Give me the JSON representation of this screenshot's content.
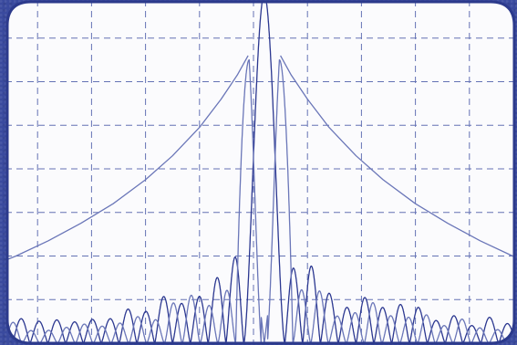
{
  "chart_data": {
    "type": "line",
    "title": "",
    "xlabel": "",
    "ylabel": "",
    "grid": true,
    "legend": "none",
    "grid_divisions": {
      "x": 10,
      "y": 8
    },
    "colors": {
      "background": "#fbfbfd",
      "grid": "#6472b4",
      "trace_dark": "#2b3790",
      "trace_light": "#6a76b8",
      "frame": "#2c3a8c"
    },
    "series": [
      {
        "name": "",
        "style": "sinc-sidelobes",
        "center_x": 5.2,
        "peak_y": 8.0,
        "mainlobe_halfwidth": 0.38,
        "sidelobe_period": 0.33,
        "sidelobe_envelope_exponent": 1.0,
        "floor_y": 0.0
      },
      {
        "name": "",
        "style": "split-peak",
        "center_x": 5.2,
        "peak_y": 6.5,
        "notch_y": 2.1,
        "lobe_offset": 0.28,
        "sidelobe_period": 0.33,
        "floor_y": 0.0
      },
      {
        "name": "",
        "style": "envelope",
        "side": "left",
        "x": [
          0.0,
          0.6,
          1.2,
          1.8,
          2.4,
          3.0,
          3.5,
          4.0,
          4.4,
          4.7,
          4.9
        ],
        "y": [
          1.7,
          2.0,
          2.35,
          2.75,
          3.2,
          3.75,
          4.3,
          4.95,
          5.6,
          6.15,
          6.6
        ]
      },
      {
        "name": "",
        "style": "envelope",
        "side": "right",
        "x": [
          5.5,
          5.7,
          6.0,
          6.4,
          6.9,
          7.4,
          8.0,
          8.6,
          9.2,
          9.8,
          10.2
        ],
        "y": [
          6.6,
          6.15,
          5.6,
          4.95,
          4.3,
          3.75,
          3.2,
          2.75,
          2.35,
          2.0,
          1.7
        ]
      }
    ]
  }
}
